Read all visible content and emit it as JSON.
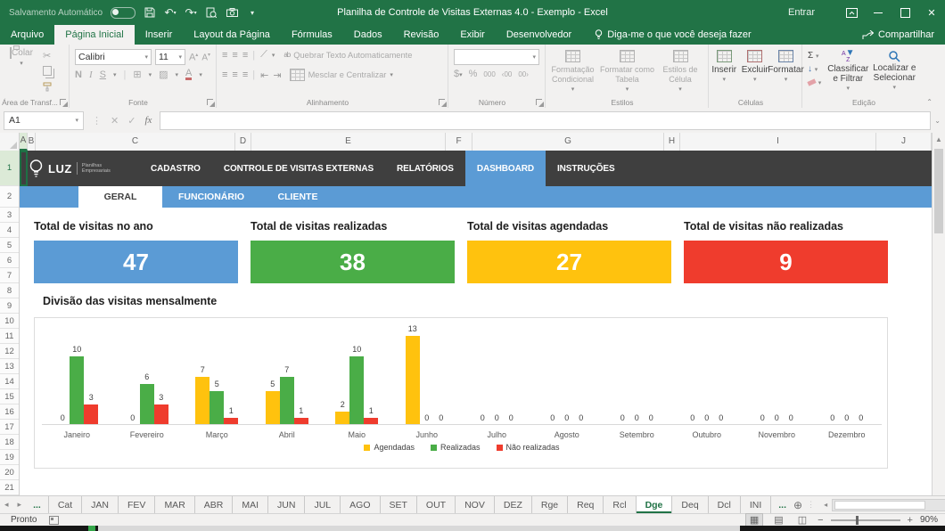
{
  "titlebar": {
    "autosave_label": "Salvamento Automático",
    "title": "Planilha de Controle de Visitas Externas 4.0 - Exemplo  -  Excel",
    "signin_label": "Entrar"
  },
  "menubar": {
    "tabs": [
      "Arquivo",
      "Página Inicial",
      "Inserir",
      "Layout da Página",
      "Fórmulas",
      "Dados",
      "Revisão",
      "Exibir",
      "Desenvolvedor"
    ],
    "active_tab": "Página Inicial",
    "tellme": "Diga-me o que você deseja fazer",
    "share_label": "Compartilhar"
  },
  "ribbon": {
    "clipboard": {
      "paste": "Colar",
      "group_label": "Área de Transf..."
    },
    "font": {
      "family": "Calibri",
      "size": "11",
      "bold": "N",
      "italic": "I",
      "underline": "S",
      "group_label": "Fonte"
    },
    "alignment": {
      "wrap_text": "Quebrar Texto Automaticamente",
      "merge_center": "Mesclar e Centralizar",
      "group_label": "Alinhamento"
    },
    "number": {
      "percent": "%",
      "thousands": "000",
      "group_label": "Número"
    },
    "styles": {
      "conditional": "Formatação Condicional",
      "format_table": "Formatar como Tabela",
      "cell_styles": "Estilos de Célula",
      "group_label": "Estilos"
    },
    "cells": {
      "insert": "Inserir",
      "delete": "Excluir",
      "format": "Formatar",
      "group_label": "Células"
    },
    "editing": {
      "autosum": "Σ",
      "sort_filter": "Classificar e Filtrar",
      "find_select": "Localizar e Selecionar",
      "group_label": "Edição"
    }
  },
  "formula_bar": {
    "name_box": "A1",
    "fx_label": "fx",
    "value": ""
  },
  "grid": {
    "columns": [
      "A",
      "B",
      "C",
      "D",
      "E",
      "F",
      "G",
      "H",
      "I",
      "J"
    ],
    "row_count": 21,
    "selected_cell": "A1"
  },
  "dashboard": {
    "brand": {
      "name": "LUZ",
      "tagline_line1": "Planilhas",
      "tagline_line2": "Empresariais"
    },
    "nav_items": [
      "CADASTRO",
      "CONTROLE DE VISITAS EXTERNAS",
      "RELATÓRIOS",
      "DASHBOARD",
      "INSTRUÇÕES"
    ],
    "nav_active": "DASHBOARD",
    "subtabs": [
      "GERAL",
      "FUNCIONÁRIO",
      "CLIENTE"
    ],
    "subtab_active": "GERAL",
    "kpis": [
      {
        "label": "Total de visitas no ano",
        "value": "47",
        "color": "#5b9bd5"
      },
      {
        "label": "Total de visitas realizadas",
        "value": "38",
        "color": "#4aad47"
      },
      {
        "label": "Total de visitas agendadas",
        "value": "27",
        "color": "#ffc20e"
      },
      {
        "label": "Total de visitas não realizadas",
        "value": "9",
        "color": "#ef3c2d"
      }
    ],
    "section_title": "Divisão das visitas mensalmente"
  },
  "chart_data": {
    "type": "bar",
    "title": "Divisão das visitas mensalmente",
    "categories": [
      "Janeiro",
      "Fevereiro",
      "Março",
      "Abril",
      "Maio",
      "Junho",
      "Julho",
      "Agosto",
      "Setembro",
      "Outubro",
      "Novembro",
      "Dezembro"
    ],
    "series": [
      {
        "name": "Agendadas",
        "color": "#ffc20e",
        "values": [
          0,
          0,
          7,
          5,
          2,
          13,
          0,
          0,
          0,
          0,
          0,
          0
        ]
      },
      {
        "name": "Realizadas",
        "color": "#4aad47",
        "values": [
          10,
          6,
          5,
          7,
          10,
          0,
          0,
          0,
          0,
          0,
          0,
          0
        ]
      },
      {
        "name": "Não realizadas",
        "color": "#ef3c2d",
        "values": [
          3,
          3,
          1,
          1,
          1,
          0,
          0,
          0,
          0,
          0,
          0,
          0
        ]
      }
    ],
    "ylim": [
      0,
      13
    ],
    "data_labels": true,
    "grid": false,
    "legend_position": "bottom"
  },
  "sheet_tabs": {
    "left_overflow": "...",
    "tabs": [
      "Cat",
      "JAN",
      "FEV",
      "MAR",
      "ABR",
      "MAI",
      "JUN",
      "JUL",
      "AGO",
      "SET",
      "OUT",
      "NOV",
      "DEZ",
      "Rge",
      "Req",
      "Rcl",
      "Dge",
      "Deq",
      "Dcl",
      "INI"
    ],
    "active": "Dge",
    "right_overflow": "..."
  },
  "status_bar": {
    "status": "Pronto",
    "zoom": "90%"
  }
}
